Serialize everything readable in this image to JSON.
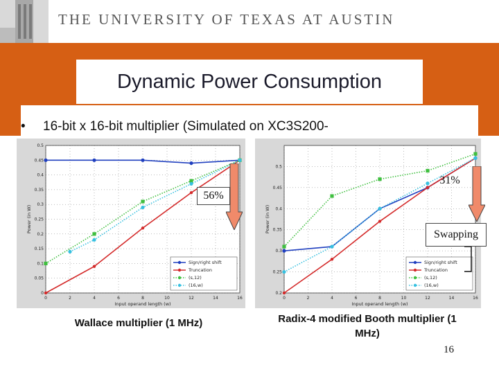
{
  "header": {
    "university": "THE UNIVERSITY OF TEXAS AT AUSTIN"
  },
  "slide": {
    "title": "Dynamic Power Consumption",
    "bullet": "16-bit x 16-bit multiplier (Simulated on XC3S200-",
    "page_number": "16",
    "annotations": {
      "left_reduction": "56%",
      "right_reduction": "31%",
      "swap_label": "Swapping"
    }
  },
  "colors": {
    "background": "#d65f14",
    "series_blue": "#1f3fbf",
    "series_red": "#d42a2a",
    "series_green": "#3fbf3f",
    "series_cyan": "#36c0e0",
    "arrow_fill": "#f08a6a"
  },
  "chart_data": [
    {
      "type": "line",
      "caption": "Wallace multiplier (1 MHz)",
      "xlabel": "Input operand length (w)",
      "ylabel": "Power (in W)",
      "xlim": [
        0,
        16
      ],
      "ylim": [
        0,
        0.5
      ],
      "xticks": [
        0,
        2,
        4,
        6,
        8,
        10,
        12,
        14,
        16
      ],
      "yticks": [
        0,
        0.05,
        0.1,
        0.15,
        0.2,
        0.25,
        0.3,
        0.35,
        0.4,
        0.45,
        0.5
      ],
      "grid": true,
      "legend_position": "bottom-right",
      "series": [
        {
          "name": "Sign/right shift",
          "style": "solid",
          "color": "#1f3fbf",
          "x": [
            0,
            4,
            8,
            12,
            16
          ],
          "y": [
            0.45,
            0.45,
            0.45,
            0.44,
            0.45
          ]
        },
        {
          "name": "Truncation",
          "style": "solid",
          "color": "#d42a2a",
          "x": [
            0,
            4,
            8,
            12,
            16
          ],
          "y": [
            0.0,
            0.09,
            0.22,
            0.34,
            0.45
          ]
        },
        {
          "name": "(s,12)",
          "style": "dotted",
          "color": "#3fbf3f",
          "x": [
            0,
            4,
            8,
            12,
            16
          ],
          "y": [
            0.1,
            0.2,
            0.31,
            0.38,
            0.45
          ]
        },
        {
          "name": "(16,w)",
          "style": "dotted",
          "color": "#36c0e0",
          "x": [
            2,
            4,
            8,
            12,
            16
          ],
          "y": [
            0.14,
            0.18,
            0.29,
            0.37,
            0.45
          ]
        }
      ]
    },
    {
      "type": "line",
      "caption": "Radix-4 modified Booth multiplier (1 MHz)",
      "xlabel": "Input operand length (w)",
      "ylabel": "Power (in W)",
      "xlim": [
        0,
        16
      ],
      "ylim": [
        0.2,
        0.55
      ],
      "xticks": [
        0,
        2,
        4,
        6,
        8,
        10,
        12,
        14,
        16
      ],
      "yticks": [
        0.2,
        0.25,
        0.3,
        0.35,
        0.4,
        0.45,
        0.5
      ],
      "grid": true,
      "legend_position": "bottom-right",
      "series": [
        {
          "name": "Sign/right shift",
          "style": "solid",
          "color": "#1f3fbf",
          "x": [
            0,
            4,
            8,
            12,
            16
          ],
          "y": [
            0.3,
            0.31,
            0.4,
            0.45,
            0.52
          ]
        },
        {
          "name": "Truncation",
          "style": "solid",
          "color": "#d42a2a",
          "x": [
            0,
            4,
            8,
            12,
            16
          ],
          "y": [
            0.2,
            0.28,
            0.37,
            0.45,
            0.52
          ]
        },
        {
          "name": "(s,12)",
          "style": "dotted",
          "color": "#3fbf3f",
          "x": [
            0,
            4,
            8,
            12,
            16
          ],
          "y": [
            0.31,
            0.43,
            0.47,
            0.49,
            0.53
          ]
        },
        {
          "name": "(16,w)",
          "style": "dotted",
          "color": "#36c0e0",
          "x": [
            0,
            4,
            8,
            12,
            16
          ],
          "y": [
            0.25,
            0.31,
            0.4,
            0.46,
            0.52
          ]
        }
      ]
    }
  ]
}
